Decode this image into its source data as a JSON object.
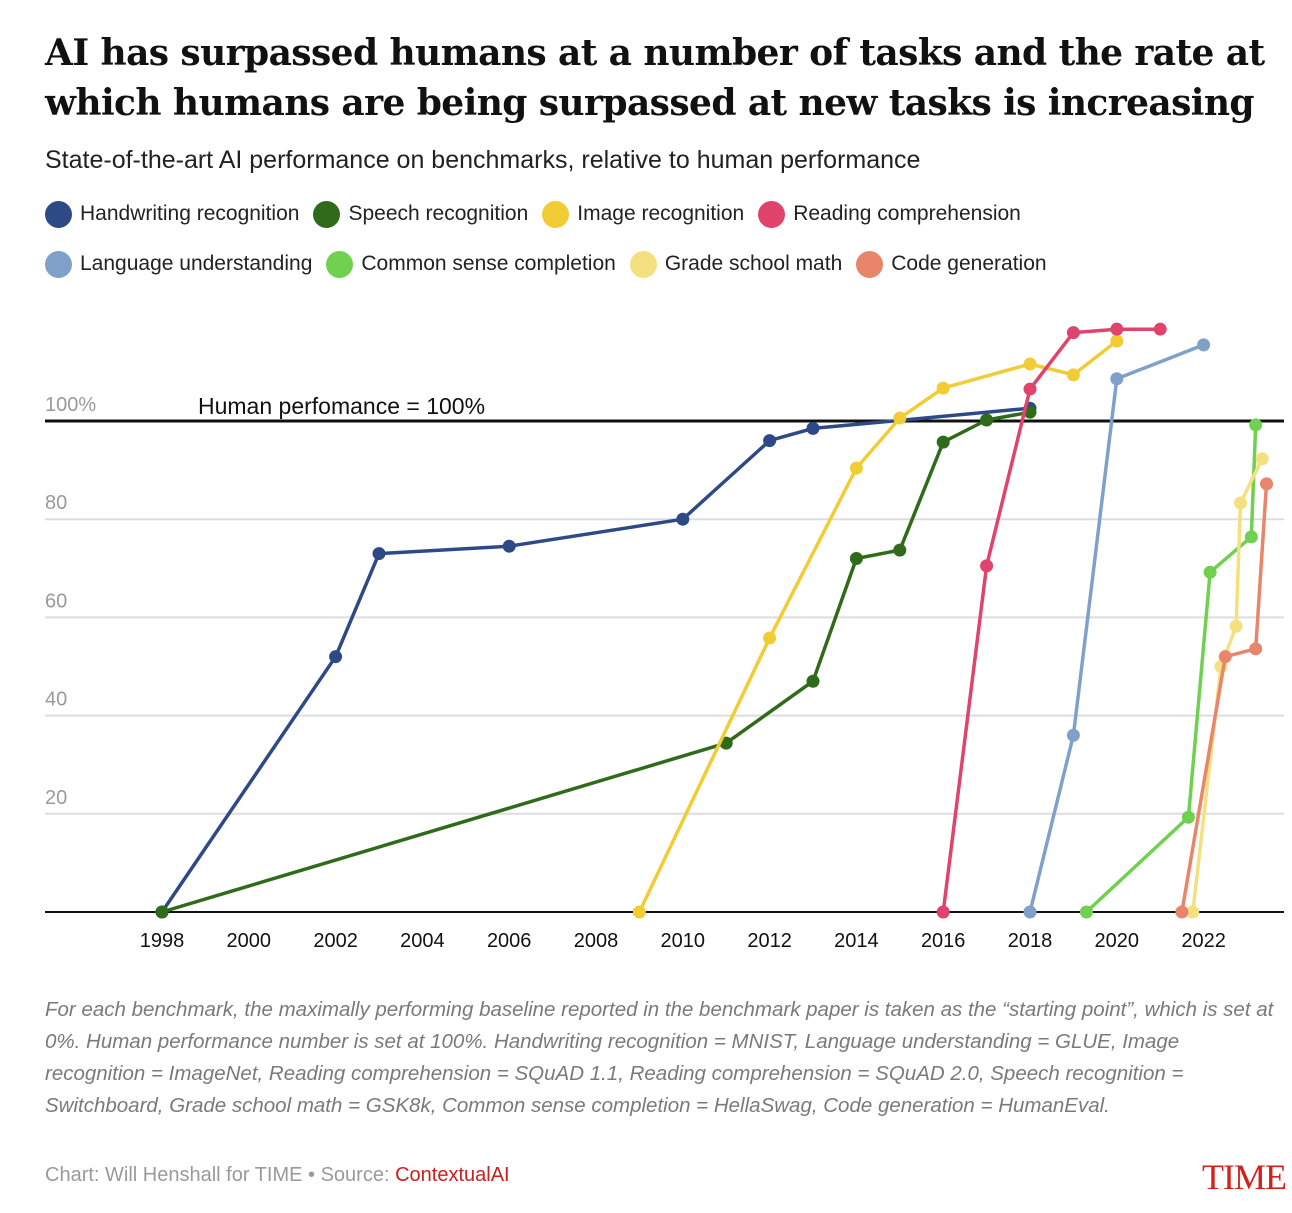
{
  "header": {
    "title": "AI has surpassed humans at a number of tasks and the rate at which humans are being surpassed at new tasks is increasing",
    "subtitle": "State-of-the-art AI performance on benchmarks, relative to human performance"
  },
  "legend": {
    "row1": [
      {
        "label": "Handwriting recognition",
        "color": "#2e4a86"
      },
      {
        "label": "Speech recognition",
        "color": "#2f6b1a"
      },
      {
        "label": "Image recognition",
        "color": "#f2cc35"
      },
      {
        "label": "Reading comprehension",
        "color": "#e0436b"
      }
    ],
    "row2": [
      {
        "label": "Language understanding",
        "color": "#7fa1c9"
      },
      {
        "label": "Common sense completion",
        "color": "#6fd14f"
      },
      {
        "label": "Grade school math",
        "color": "#f4e07e"
      },
      {
        "label": "Code generation",
        "color": "#e8856a"
      }
    ]
  },
  "chart_data": {
    "type": "line",
    "title": "AI has surpassed humans at a number of tasks and the rate at which humans are being surpassed at new tasks is increasing",
    "subtitle": "State-of-the-art AI performance on benchmarks, relative to human performance",
    "xlabel": "",
    "ylabel": "",
    "xlim": [
      1998,
      2023.5
    ],
    "ylim": [
      0,
      120
    ],
    "x_ticks": [
      "1998",
      "2000",
      "2002",
      "2004",
      "2006",
      "2008",
      "2010",
      "2012",
      "2014",
      "2016",
      "2018",
      "2020",
      "2022"
    ],
    "y_ticks": [
      {
        "value": 20,
        "label": "20"
      },
      {
        "value": 40,
        "label": "40"
      },
      {
        "value": 60,
        "label": "60"
      },
      {
        "value": 80,
        "label": "80"
      },
      {
        "value": 100,
        "label": "100%"
      }
    ],
    "grid": true,
    "reference_line": {
      "value": 100,
      "label": "Human perfomance = 100%"
    },
    "legend_position": "top",
    "series": [
      {
        "name": "Handwriting recognition",
        "color": "#2e4a86",
        "points": [
          [
            1998,
            0
          ],
          [
            2002,
            52
          ],
          [
            2003,
            73
          ],
          [
            2006,
            74.5
          ],
          [
            2010,
            80
          ],
          [
            2012,
            96
          ],
          [
            2013,
            98.5
          ],
          [
            2018,
            102.6
          ]
        ]
      },
      {
        "name": "Speech recognition",
        "color": "#2f6b1a",
        "points": [
          [
            1998,
            0
          ],
          [
            2011,
            34.4
          ],
          [
            2013,
            47
          ],
          [
            2014,
            72
          ],
          [
            2015,
            73.7
          ],
          [
            2016,
            95.7
          ],
          [
            2017,
            100.2
          ],
          [
            2018,
            101.8
          ]
        ]
      },
      {
        "name": "Image recognition",
        "color": "#f2cc35",
        "points": [
          [
            2009,
            0
          ],
          [
            2012,
            55.8
          ],
          [
            2014,
            90.4
          ],
          [
            2015,
            100.6
          ],
          [
            2016,
            106.7
          ],
          [
            2018,
            111.6
          ],
          [
            2019,
            109.4
          ],
          [
            2020,
            116.3
          ]
        ]
      },
      {
        "name": "Reading comprehension",
        "color": "#e0436b",
        "points": [
          [
            2016,
            0
          ],
          [
            2017,
            70.5
          ],
          [
            2018,
            106.5
          ],
          [
            2019,
            118
          ],
          [
            2020,
            118.7
          ],
          [
            2021,
            118.7
          ]
        ]
      },
      {
        "name": "Language understanding",
        "color": "#7fa1c9",
        "points": [
          [
            2018,
            0
          ],
          [
            2019,
            36
          ],
          [
            2020,
            108.6
          ],
          [
            2022,
            115.5
          ]
        ]
      },
      {
        "name": "Common sense completion",
        "color": "#6fd14f",
        "points": [
          [
            2019.3,
            0
          ],
          [
            2021.65,
            19.3
          ],
          [
            2022.15,
            69.2
          ],
          [
            2023.1,
            76.4
          ],
          [
            2023.2,
            99.2
          ]
        ]
      },
      {
        "name": "Grade school math",
        "color": "#f4e07e",
        "points": [
          [
            2021.75,
            0
          ],
          [
            2022.4,
            50
          ],
          [
            2022.75,
            58.2
          ],
          [
            2022.85,
            83.3
          ],
          [
            2023.35,
            92.3
          ]
        ]
      },
      {
        "name": "Code generation",
        "color": "#e8856a",
        "points": [
          [
            2021.5,
            0
          ],
          [
            2022.5,
            52
          ],
          [
            2023.2,
            53.6
          ],
          [
            2023.45,
            87.2
          ]
        ]
      }
    ]
  },
  "footer": {
    "note": "For each benchmark, the maximally performing baseline reported in the benchmark paper is taken as the “starting point”, which is set at 0%. Human performance number is set at 100%. Handwriting recognition = MNIST, Language understanding = GLUE, Image recognition = ImageNet, Reading comprehension = SQuAD 1.1, Reading comprehension = SQuAD 2.0, Speech recognition = Switchboard, Grade school math = GSK8k, Common sense completion = HellaSwag, Code generation = HumanEval.",
    "credit_prefix": "Chart: Will Henshall for TIME • Source: ",
    "source": "ContextualAI",
    "logo": "TIME"
  }
}
